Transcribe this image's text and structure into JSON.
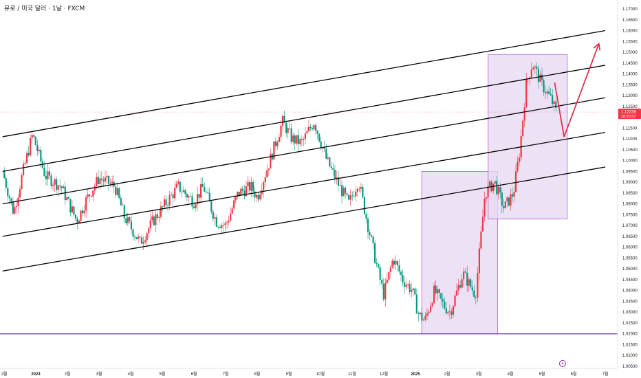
{
  "title": "유로 / 미국 달러 · 1날 · FXCM",
  "price_badge": {
    "price": "1.12238",
    "countdown": "18:20:57",
    "color": "#f23645"
  },
  "flash_icon": "lightning-icon",
  "colors": {
    "up": "#f23645",
    "down": "#089981",
    "channel": "#000000",
    "support": "#673ab7",
    "zone_fill": "#e9d9f2",
    "zone_stroke": "#b45cd6",
    "arrow": "#e0314b"
  },
  "chart_data": {
    "type": "candlestick",
    "symbol": "EUR/USD",
    "timeframe": "1D",
    "ylim": [
      1.005,
      1.17
    ],
    "yticks": [
      "1.17000",
      "1.16500",
      "1.16000",
      "1.15500",
      "1.15000",
      "1.14500",
      "1.14000",
      "1.13500",
      "1.13000",
      "1.12500",
      "1.12000",
      "1.11500",
      "1.11000",
      "1.10500",
      "1.10000",
      "1.09500",
      "1.09000",
      "1.08500",
      "1.08000",
      "1.07500",
      "1.07000",
      "1.06500",
      "1.06000",
      "1.05500",
      "1.05000",
      "1.04500",
      "1.04000",
      "1.03500",
      "1.03000",
      "1.02500",
      "1.02000",
      "1.01500",
      "1.01000",
      "1.00500"
    ],
    "xaxis_labels": [
      {
        "label": "2월",
        "t": 0.0
      },
      {
        "label": "2024",
        "t": 1.0
      },
      {
        "label": "2월",
        "t": 2.0
      },
      {
        "label": "3월",
        "t": 3.0
      },
      {
        "label": "4월",
        "t": 4.0
      },
      {
        "label": "5월",
        "t": 5.0
      },
      {
        "label": "6월",
        "t": 6.0
      },
      {
        "label": "7월",
        "t": 7.0
      },
      {
        "label": "8월",
        "t": 8.0
      },
      {
        "label": "9월",
        "t": 9.0
      },
      {
        "label": "10월",
        "t": 10.0
      },
      {
        "label": "11월",
        "t": 11.0
      },
      {
        "label": "12월",
        "t": 12.0
      },
      {
        "label": "2025",
        "t": 13.0
      },
      {
        "label": "2월",
        "t": 14.0
      },
      {
        "label": "3월",
        "t": 15.0
      },
      {
        "label": "4월",
        "t": 16.0
      },
      {
        "label": "5월",
        "t": 17.0
      },
      {
        "label": "6월",
        "t": 18.0
      },
      {
        "label": "7월",
        "t": 19.0
      }
    ],
    "close_path": [
      {
        "t": -0.05,
        "p": 1.095
      },
      {
        "t": 0.3,
        "p": 1.076
      },
      {
        "t": 0.6,
        "p": 1.095
      },
      {
        "t": 0.9,
        "p": 1.112
      },
      {
        "t": 1.3,
        "p": 1.093
      },
      {
        "t": 1.8,
        "p": 1.088
      },
      {
        "t": 2.3,
        "p": 1.072
      },
      {
        "t": 2.6,
        "p": 1.082
      },
      {
        "t": 3.0,
        "p": 1.092
      },
      {
        "t": 3.5,
        "p": 1.088
      },
      {
        "t": 3.8,
        "p": 1.074
      },
      {
        "t": 4.3,
        "p": 1.062
      },
      {
        "t": 4.7,
        "p": 1.072
      },
      {
        "t": 5.0,
        "p": 1.078
      },
      {
        "t": 5.5,
        "p": 1.088
      },
      {
        "t": 6.0,
        "p": 1.081
      },
      {
        "t": 6.3,
        "p": 1.088
      },
      {
        "t": 6.7,
        "p": 1.072
      },
      {
        "t": 7.0,
        "p": 1.07
      },
      {
        "t": 7.4,
        "p": 1.085
      },
      {
        "t": 7.8,
        "p": 1.088
      },
      {
        "t": 8.0,
        "p": 1.083
      },
      {
        "t": 8.4,
        "p": 1.1
      },
      {
        "t": 8.8,
        "p": 1.118
      },
      {
        "t": 9.1,
        "p": 1.11
      },
      {
        "t": 9.4,
        "p": 1.108
      },
      {
        "t": 9.8,
        "p": 1.118
      },
      {
        "t": 10.2,
        "p": 1.1
      },
      {
        "t": 10.6,
        "p": 1.088
      },
      {
        "t": 10.9,
        "p": 1.08
      },
      {
        "t": 11.2,
        "p": 1.091
      },
      {
        "t": 11.5,
        "p": 1.07
      },
      {
        "t": 11.8,
        "p": 1.05
      },
      {
        "t": 12.0,
        "p": 1.038
      },
      {
        "t": 12.3,
        "p": 1.055
      },
      {
        "t": 12.6,
        "p": 1.045
      },
      {
        "t": 12.9,
        "p": 1.04
      },
      {
        "t": 13.1,
        "p": 1.029
      },
      {
        "t": 13.3,
        "p": 1.026
      },
      {
        "t": 13.6,
        "p": 1.04
      },
      {
        "t": 13.9,
        "p": 1.033
      },
      {
        "t": 14.1,
        "p": 1.03
      },
      {
        "t": 14.5,
        "p": 1.048
      },
      {
        "t": 14.9,
        "p": 1.038
      },
      {
        "t": 15.2,
        "p": 1.085
      },
      {
        "t": 15.5,
        "p": 1.09
      },
      {
        "t": 15.8,
        "p": 1.078
      },
      {
        "t": 16.1,
        "p": 1.085
      },
      {
        "t": 16.3,
        "p": 1.105
      },
      {
        "t": 16.5,
        "p": 1.135
      },
      {
        "t": 16.7,
        "p": 1.145
      },
      {
        "t": 17.0,
        "p": 1.135
      },
      {
        "t": 17.3,
        "p": 1.128
      },
      {
        "t": 17.45,
        "p": 1.1224
      }
    ],
    "channel_lines": [
      {
        "t1": -0.05,
        "p1": 1.111,
        "t2": 19.0,
        "p2": 1.16
      },
      {
        "t1": -0.05,
        "p1": 1.095,
        "t2": 19.0,
        "p2": 1.144
      },
      {
        "t1": -0.05,
        "p1": 1.08,
        "t2": 19.0,
        "p2": 1.129
      },
      {
        "t1": -0.05,
        "p1": 1.065,
        "t2": 19.0,
        "p2": 1.113
      },
      {
        "t1": -0.05,
        "p1": 1.049,
        "t2": 19.0,
        "p2": 1.097
      }
    ],
    "support_level": 1.02,
    "current_price": 1.12238,
    "zones": [
      {
        "t1": 13.2,
        "t2": 15.6,
        "p1": 1.02,
        "p2": 1.095
      },
      {
        "t1": 15.3,
        "t2": 17.8,
        "p1": 1.073,
        "p2": 1.149
      }
    ],
    "projection": [
      {
        "t": 17.4,
        "p": 1.136
      },
      {
        "t": 17.7,
        "p": 1.111
      },
      {
        "t": 18.8,
        "p": 1.154
      }
    ]
  }
}
